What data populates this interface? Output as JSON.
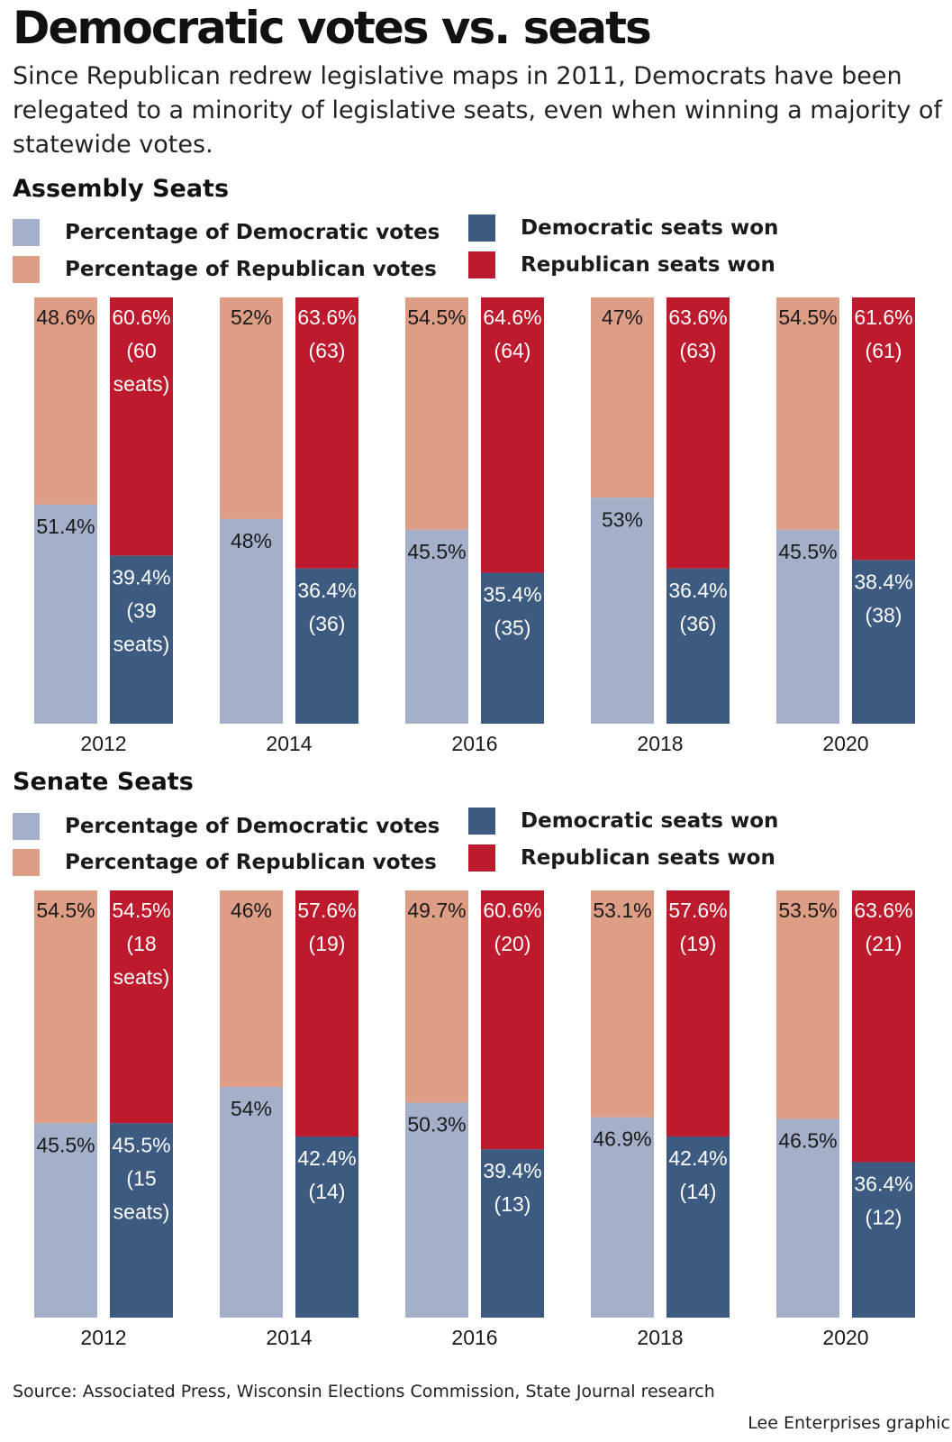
{
  "title": "Democratic votes vs. seats",
  "subtitle": "Since Republican redrew legislative maps in 2011, Democrats have been relegated to a minority of legislative seats, even when winning a majority of statewide votes.",
  "legend": {
    "dem_votes": "Percentage of Democratic votes",
    "rep_votes": "Percentage of Republican votes",
    "dem_seats": "Democratic seats won",
    "rep_seats": "Republican seats won"
  },
  "colors": {
    "dem_votes": "#a4b0c9",
    "rep_votes": "#de9e86",
    "dem_seats": "#3d5a80",
    "rep_seats": "#bd1a2d"
  },
  "source": "Source: Associated Press, Wisconsin Elections Commission, State Journal research",
  "credit": "Lee Enterprises graphic",
  "chart_data": [
    {
      "type": "bar",
      "stacked": true,
      "title": "Assembly Seats",
      "categories": [
        "2012",
        "2014",
        "2016",
        "2018",
        "2020"
      ],
      "ylim": [
        0,
        100
      ],
      "votes": {
        "dem": [
          51.4,
          48,
          45.5,
          53,
          45.5
        ],
        "rep": [
          48.6,
          52,
          54.5,
          47,
          54.5
        ],
        "dem_labels": [
          "51.4%",
          "48%",
          "45.5%",
          "53%",
          "45.5%"
        ],
        "rep_labels": [
          "48.6%",
          "52%",
          "54.5%",
          "47%",
          "54.5%"
        ]
      },
      "seats": {
        "dem": [
          39.4,
          36.4,
          35.4,
          36.4,
          38.4
        ],
        "rep": [
          60.6,
          63.6,
          64.6,
          63.6,
          61.6
        ],
        "dem_counts": [
          39,
          36,
          35,
          36,
          38
        ],
        "rep_counts": [
          60,
          63,
          64,
          63,
          61
        ],
        "dem_labels": [
          [
            "39.4%",
            "(39",
            "seats)"
          ],
          [
            "36.4%",
            "(36)"
          ],
          [
            "35.4%",
            "(35)"
          ],
          [
            "36.4%",
            "(36)"
          ],
          [
            "38.4%",
            "(38)"
          ]
        ],
        "rep_labels": [
          [
            "60.6%",
            "(60",
            "seats)"
          ],
          [
            "63.6%",
            "(63)"
          ],
          [
            "64.6%",
            "(64)"
          ],
          [
            "63.6%",
            "(63)"
          ],
          [
            "61.6%",
            "(61)"
          ]
        ]
      }
    },
    {
      "type": "bar",
      "stacked": true,
      "title": "Senate Seats",
      "categories": [
        "2012",
        "2014",
        "2016",
        "2018",
        "2020"
      ],
      "ylim": [
        0,
        100
      ],
      "votes": {
        "dem": [
          45.5,
          54,
          50.3,
          46.9,
          46.5
        ],
        "rep": [
          54.5,
          46,
          49.7,
          53.1,
          53.5
        ],
        "dem_labels": [
          "45.5%",
          "54%",
          "50.3%",
          "46.9%",
          "46.5%"
        ],
        "rep_labels": [
          "54.5%",
          "46%",
          "49.7%",
          "53.1%",
          "53.5%"
        ]
      },
      "seats": {
        "dem": [
          45.5,
          42.4,
          39.4,
          42.4,
          36.4
        ],
        "rep": [
          54.5,
          57.6,
          60.6,
          57.6,
          63.6
        ],
        "dem_counts": [
          15,
          14,
          13,
          14,
          12
        ],
        "rep_counts": [
          18,
          19,
          20,
          19,
          21
        ],
        "dem_labels": [
          [
            "45.5%",
            "(15",
            "seats)"
          ],
          [
            "42.4%",
            "(14)"
          ],
          [
            "39.4%",
            "(13)"
          ],
          [
            "42.4%",
            "(14)"
          ],
          [
            "36.4%",
            "(12)"
          ]
        ],
        "rep_labels": [
          [
            "54.5%",
            "(18",
            "seats)"
          ],
          [
            "57.6%",
            "(19)"
          ],
          [
            "60.6%",
            "(20)"
          ],
          [
            "57.6%",
            "(19)"
          ],
          [
            "63.6%",
            "(21)"
          ]
        ]
      }
    }
  ]
}
